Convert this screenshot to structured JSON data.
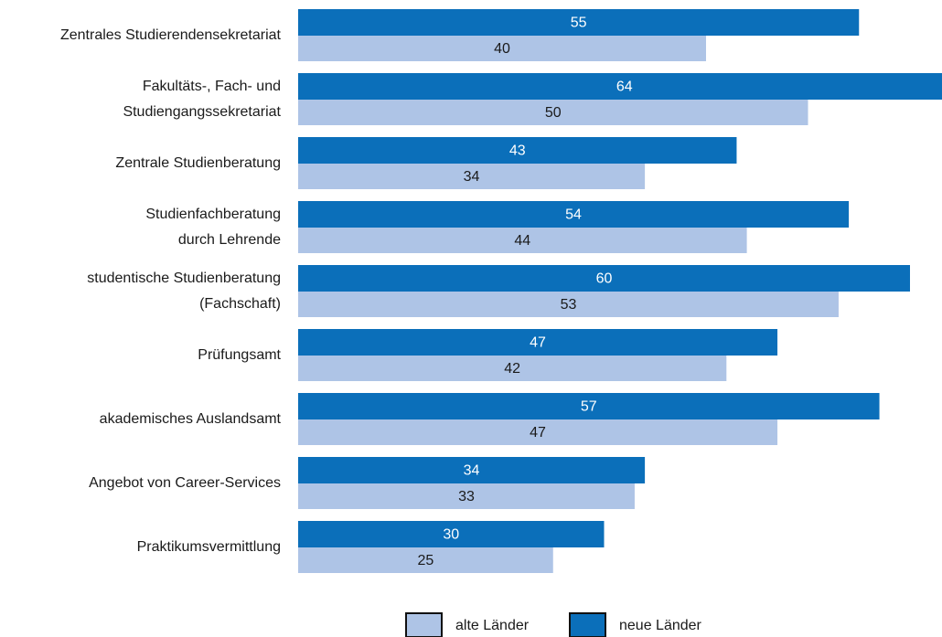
{
  "chart_data": {
    "type": "bar",
    "orientation": "horizontal",
    "categories": [
      [
        "Zentrales Studierendensekretariat"
      ],
      [
        "Fakultäts-, Fach- und",
        "Studiengangssekretariat"
      ],
      [
        "Zentrale Studienberatung"
      ],
      [
        "Studienfachberatung",
        "durch Lehrende"
      ],
      [
        "studentische Studienberatung",
        "(Fachschaft)"
      ],
      [
        "Prüfungsamt"
      ],
      [
        "akademisches Auslandsamt"
      ],
      [
        "Angebot von Career-Services"
      ],
      [
        "Praktikumsvermittlung"
      ]
    ],
    "series": [
      {
        "name": "neue Länder",
        "color": "#0b6fba",
        "values": [
          55,
          64,
          43,
          54,
          60,
          47,
          57,
          34,
          30
        ]
      },
      {
        "name": "alte Länder",
        "color": "#aec4e6",
        "values": [
          40,
          50,
          34,
          44,
          53,
          42,
          47,
          33,
          25
        ]
      }
    ],
    "legend": "bottom"
  }
}
